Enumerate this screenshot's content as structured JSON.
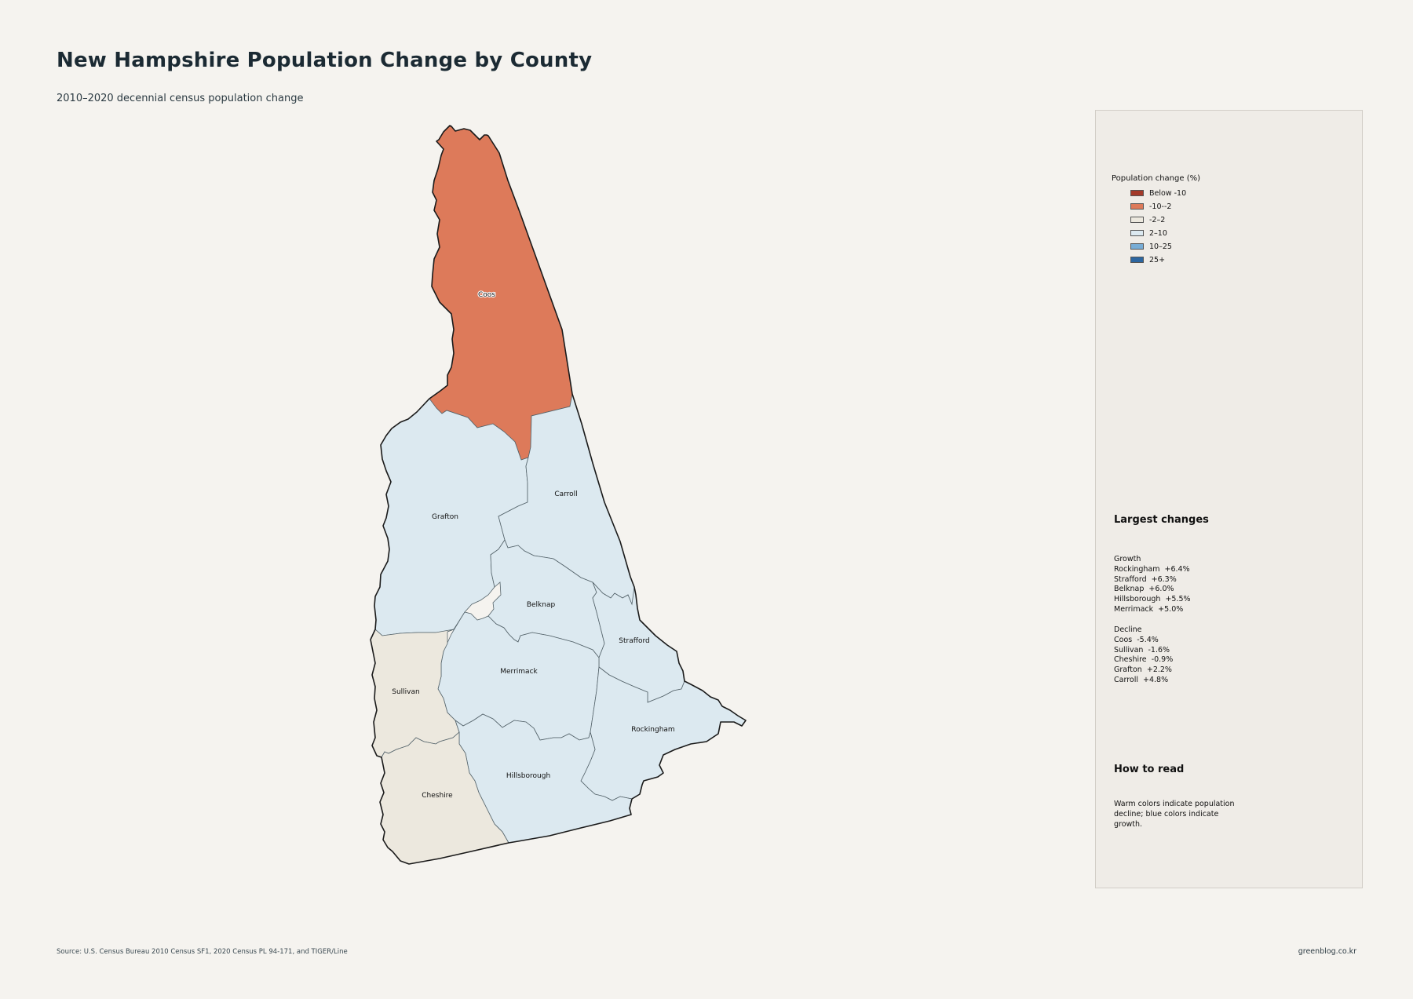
{
  "title": "New Hampshire Population Change by County",
  "subtitle": "2010–2020 decennial census population change",
  "legend": {
    "title": "Population change (%)",
    "items": [
      {
        "label": "Below -10",
        "color": "#a33a2a"
      },
      {
        "label": "-10--2",
        "color": "#dd7a5a"
      },
      {
        "label": "-2–2",
        "color": "#ece8de"
      },
      {
        "label": "2–10",
        "color": "#dce9f0"
      },
      {
        "label": "10–25",
        "color": "#78add6"
      },
      {
        "label": "25+",
        "color": "#2c66a0"
      }
    ]
  },
  "counties": [
    {
      "name": "Coos",
      "change": -5.4,
      "color": "#dd7a5a"
    },
    {
      "name": "Grafton",
      "change": 2.2,
      "color": "#dce9f0"
    },
    {
      "name": "Carroll",
      "change": 4.8,
      "color": "#dce9f0"
    },
    {
      "name": "Belknap",
      "change": 6.0,
      "color": "#dce9f0"
    },
    {
      "name": "Strafford",
      "change": 6.3,
      "color": "#dce9f0"
    },
    {
      "name": "Merrimack",
      "change": 5.0,
      "color": "#dce9f0"
    },
    {
      "name": "Sullivan",
      "change": -1.6,
      "color": "#ece8de"
    },
    {
      "name": "Rockingham",
      "change": 6.4,
      "color": "#dce9f0"
    },
    {
      "name": "Hillsborough",
      "change": 5.5,
      "color": "#dce9f0"
    },
    {
      "name": "Cheshire",
      "change": -0.9,
      "color": "#ece8de"
    }
  ],
  "largest_changes": {
    "title": "Largest changes",
    "growth_heading": "Growth",
    "growth": [
      "Rockingham  +6.4%",
      "Strafford  +6.3%",
      "Belknap  +6.0%",
      "Hillsborough  +5.5%",
      "Merrimack  +5.0%"
    ],
    "decline_heading": "Decline",
    "decline": [
      "Coos  -5.4%",
      "Sullivan  -1.6%",
      "Cheshire  -0.9%",
      "Grafton  +2.2%",
      "Carroll  +4.8%"
    ]
  },
  "how_to_read": {
    "title": "How to read",
    "text": "Warm colors indicate population decline; blue colors indicate growth."
  },
  "footer": {
    "source": "Source: U.S. Census Bureau 2010 Census SF1, 2020 Census PL 94-171, and TIGER/Line",
    "credit": "greenblog.co.kr"
  }
}
